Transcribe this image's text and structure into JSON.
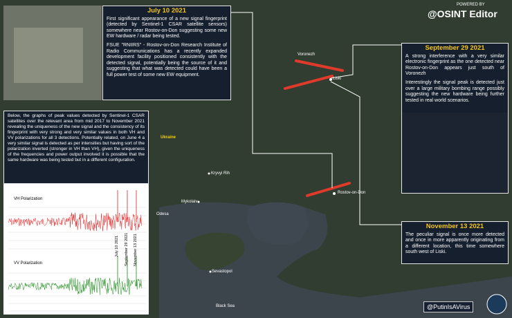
{
  "header": {
    "powered_by": "POWERED BY",
    "brand": "@OSINT Editor"
  },
  "footer": {
    "handle": "@PutinIsAVirus"
  },
  "map_labels": {
    "voronezh": "Voronezh",
    "liski": "Liski",
    "rostov": "Rostov-on-Don",
    "ukraine": "Ukraine",
    "kryvyi_rih": "Kryvyi Rih",
    "mykolaiv": "Mykolaiv",
    "odesa": "Odesa",
    "sevastopol": "Sevastopol",
    "black_sea": "Black Sea"
  },
  "july_box": {
    "title": "July 10 2021",
    "paragraphs": [
      "First significant appearance of a new signal fingerprint (detected by Sentinel-1 CSAR satellite sensors) somewhere near Rostov-on-Don suggesting some new EW hardware / radar being tested.",
      "FSUE \"RNIIRS\" - Rostov-on-Don Research Institute of Radio Communications has a recently expanded development facility positioned consistently with the detected signal, potentially being the source of it and suggesting that what was detected could have been a full power test of some new EW equipment."
    ]
  },
  "september_box": {
    "title": "September 29 2021",
    "paragraphs": [
      "A strong interference with a very similar electronic fingerprint as the one detected near Rostov-on-Don appears just south of Voronezh",
      "Interestingly the signal peak is detected just over a large military bombing range possibly suggesting the new hardware being further tested in real world scenarios."
    ]
  },
  "november_box": {
    "title": "November 13 2021",
    "paragraphs": [
      "The peculiar signal is once more detected and once in more apparently originating from a different location, this time somewhere south west of Liski."
    ]
  },
  "left_box": {
    "text": "Below, the graphs of peak values detected by Sentinel-1 CSAR satellites over the relevant area from mid 2017 to November 2021 revealing the uniqueness of the new signal and the consistency of its fingerprint with very strong and very similar values in both VH and VV polarizations for all 3 detections. Potentially related, on June 4 a very similar signal is detected as per intensities but having sort of the polarization inverted (stronger in VH than VH), given the uniqueness of the frequencies and power output involved it is possible that the same hardware was being tested but in a different configuration.",
    "graphs": {
      "vh_label": "VH Polarization",
      "vv_label": "VV Polarization",
      "markers": [
        "July 10 2021",
        "September 29 2021",
        "November 13 2021"
      ]
    }
  }
}
